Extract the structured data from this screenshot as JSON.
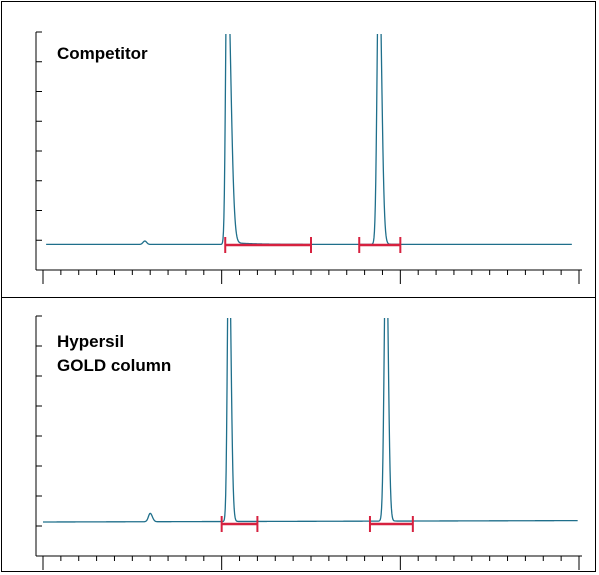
{
  "colors": {
    "trace": "#1f6f8b",
    "bracket": "#d6213f",
    "axis": "#000000"
  },
  "chart_data": [
    {
      "type": "line",
      "title": "Competitor",
      "xlabel": "",
      "ylabel": "",
      "x_ticks_major": 4,
      "x_minor_per_major": 5,
      "y_tick_count": 9,
      "peaks": [
        {
          "center": 1.03,
          "height": 10.5,
          "fronting": 0.008,
          "tailing": 0.02,
          "tail_amp": 0.08,
          "tail_decay": 0.12
        },
        {
          "center": 1.88,
          "height": 10.5,
          "fronting": 0.01,
          "tailing": 0.015,
          "tail_amp": 0.025,
          "tail_decay": 0.05
        },
        {
          "center": 0.57,
          "height": 0.12,
          "fronting": 0.01,
          "tailing": 0.01,
          "tail_amp": 0,
          "tail_decay": 0
        }
      ],
      "baseline_start": -0.05,
      "baseline_end": -0.05,
      "peak_widths": [
        [
          1.02,
          1.5
        ],
        [
          1.77,
          2.0
        ]
      ],
      "bracket_color": "#d6213f",
      "trace_color": "#1f6f8b"
    },
    {
      "type": "line",
      "title": "Hypersil\nGOLD column",
      "xlabel": "",
      "ylabel": "",
      "x_ticks_major": 4,
      "x_minor_per_major": 5,
      "y_tick_count": 9,
      "peaks": [
        {
          "center": 1.04,
          "height": 10.5,
          "fronting": 0.008,
          "tailing": 0.012,
          "tail_amp": 0.01,
          "tail_decay": 0.03
        },
        {
          "center": 1.92,
          "height": 10.5,
          "fronting": 0.01,
          "tailing": 0.012,
          "tail_amp": 0.01,
          "tail_decay": 0.03
        },
        {
          "center": 0.6,
          "height": 0.3,
          "fronting": 0.01,
          "tailing": 0.012,
          "tail_amp": 0,
          "tail_decay": 0
        }
      ],
      "baseline_start": 0.0,
      "baseline_end": 0.05,
      "peak_widths": [
        [
          1.0,
          1.2
        ],
        [
          1.83,
          2.07
        ]
      ],
      "bracket_color": "#d6213f",
      "trace_color": "#1f6f8b"
    }
  ]
}
